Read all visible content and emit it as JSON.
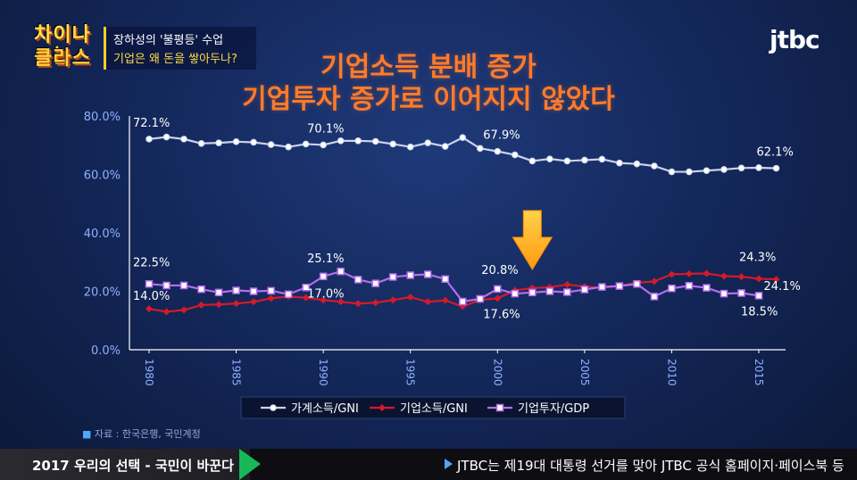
{
  "show": {
    "logo_line1": "차이나는",
    "logo_line2": "클라스",
    "subtitle1": "장하성의 '불평등' 수업",
    "subtitle2": "기업은 왜 돈을 쌓아두나?",
    "channel_logo": "jtbc"
  },
  "colors": {
    "household": "#c8d4ef",
    "corp_income": "#d41a2a",
    "corp_invest": "#b66cf0",
    "axis": "#ffffff",
    "tick_label": "#8fb0ff",
    "title": "#ff7a2a",
    "arrow": "#ffb020"
  },
  "chart_data": {
    "type": "line",
    "title": "기업소득 분배 증가\n기업투자 증가로 이어지지 않았다",
    "title_lines": [
      "기업소득 분배 증가",
      "기업투자 증가로 이어지지 않았다"
    ],
    "xlabel": "",
    "ylabel": "",
    "ylim": [
      0,
      80
    ],
    "xlim": [
      1979,
      2017
    ],
    "yticks": [
      0,
      20,
      40,
      60,
      80
    ],
    "ytick_labels": [
      "0.0%",
      "20.0%",
      "40.0%",
      "60.0%",
      "80.0%"
    ],
    "xticks": [
      1980,
      1985,
      1990,
      1995,
      2000,
      2005,
      2010,
      2015
    ],
    "xtick_labels": [
      "1980",
      "1985",
      "1990",
      "1995",
      "2000",
      "2005",
      "2010",
      "2015"
    ],
    "grid": false,
    "legend_position": "bottom",
    "series": [
      {
        "name": "가계소득/GNI",
        "marker": "circle",
        "x": [
          1980,
          1981,
          1982,
          1983,
          1984,
          1985,
          1986,
          1987,
          1988,
          1989,
          1990,
          1991,
          1992,
          1993,
          1994,
          1995,
          1996,
          1997,
          1998,
          1999,
          2000,
          2001,
          2002,
          2003,
          2004,
          2005,
          2006,
          2007,
          2008,
          2009,
          2010,
          2011,
          2012,
          2013,
          2014,
          2015,
          2016
        ],
        "values": [
          72.1,
          72.8,
          72.1,
          70.6,
          70.8,
          71.2,
          71.0,
          70.2,
          69.4,
          70.4,
          70.1,
          71.5,
          71.5,
          71.3,
          70.4,
          69.4,
          70.8,
          69.6,
          72.6,
          68.9,
          67.9,
          66.7,
          64.6,
          65.3,
          64.6,
          64.9,
          65.2,
          63.9,
          63.6,
          62.9,
          60.9,
          60.9,
          61.3,
          61.7,
          62.2,
          62.3,
          62.1
        ]
      },
      {
        "name": "기업소득/GNI",
        "marker": "diamond",
        "x": [
          1980,
          1981,
          1982,
          1983,
          1984,
          1985,
          1986,
          1987,
          1988,
          1989,
          1990,
          1991,
          1992,
          1993,
          1994,
          1995,
          1996,
          1997,
          1998,
          1999,
          2000,
          2001,
          2002,
          2003,
          2004,
          2005,
          2006,
          2007,
          2008,
          2009,
          2010,
          2011,
          2012,
          2013,
          2014,
          2015,
          2016
        ],
        "values": [
          14.0,
          13.0,
          13.6,
          15.3,
          15.5,
          15.8,
          16.4,
          17.6,
          18.2,
          17.8,
          17.0,
          16.4,
          15.8,
          16.1,
          17.0,
          18.0,
          16.4,
          16.9,
          14.8,
          17.0,
          17.6,
          20.3,
          21.1,
          21.4,
          22.3,
          21.6,
          21.2,
          21.8,
          22.9,
          23.4,
          25.8,
          26.0,
          26.1,
          25.2,
          25.0,
          24.3,
          24.1
        ]
      },
      {
        "name": "기업투자/GDP",
        "marker": "square",
        "x": [
          1980,
          1981,
          1982,
          1983,
          1984,
          1985,
          1986,
          1987,
          1988,
          1989,
          1990,
          1991,
          1992,
          1993,
          1994,
          1995,
          1996,
          1997,
          1998,
          1999,
          2000,
          2001,
          2002,
          2003,
          2004,
          2005,
          2006,
          2007,
          2008,
          2009,
          2010,
          2011,
          2012,
          2013,
          2014,
          2015
        ],
        "values": [
          22.5,
          22.0,
          22.0,
          20.7,
          19.6,
          20.3,
          20.0,
          20.2,
          19.0,
          21.3,
          25.1,
          26.8,
          24.0,
          22.7,
          24.9,
          25.5,
          25.8,
          24.2,
          16.5,
          17.4,
          20.8,
          19.2,
          19.6,
          20.0,
          19.7,
          20.6,
          21.5,
          21.8,
          22.5,
          18.2,
          21.0,
          21.9,
          21.2,
          19.2,
          19.4,
          18.5
        ]
      }
    ],
    "annotations": [
      {
        "text": "72.1%",
        "series": 0,
        "x": 1980
      },
      {
        "text": "70.1%",
        "series": 0,
        "x": 1990
      },
      {
        "text": "67.9%",
        "series": 0,
        "x": 2000
      },
      {
        "text": "62.1%",
        "series": 0,
        "x": 2016
      },
      {
        "text": "22.5%",
        "series": 2,
        "x": 1980
      },
      {
        "text": "14.0%",
        "series": 1,
        "x": 1980
      },
      {
        "text": "25.1%",
        "series": 2,
        "x": 1990
      },
      {
        "text": "17.0%",
        "series": 1,
        "x": 1990
      },
      {
        "text": "20.8%",
        "series": 2,
        "x": 2000
      },
      {
        "text": "17.6%",
        "series": 1,
        "x": 2000
      },
      {
        "text": "24.3%",
        "series": 1,
        "x": 2015
      },
      {
        "text": "24.1%",
        "series": 1,
        "x": 2016
      },
      {
        "text": "18.5%",
        "series": 2,
        "x": 2015
      }
    ],
    "highlight_arrow_x": 2002
  },
  "source_label": "자료 : 한국은행, 국민계정",
  "bottom_bar": {
    "left_text": "2017 우리의 선택 - 국민이 바꾼다",
    "ticker": "JTBC는 제19대 대통령 선거를 맞아 JTBC 공식 홈페이지·페이스북 등"
  }
}
